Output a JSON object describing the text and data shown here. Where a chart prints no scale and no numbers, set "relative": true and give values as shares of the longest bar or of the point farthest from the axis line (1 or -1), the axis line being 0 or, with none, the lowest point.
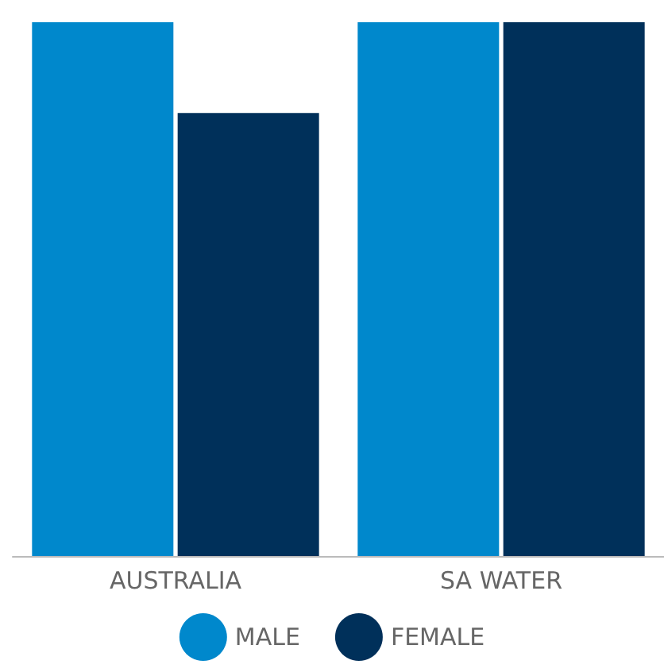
{
  "chart_data": {
    "type": "bar",
    "relative": true,
    "categories": [
      "AUSTRALIA",
      "SA WATER"
    ],
    "series": [
      {
        "name": "MALE",
        "color": "#0088cc",
        "values": [
          1,
          1
        ]
      },
      {
        "name": "FEMALE",
        "color": "#00305a",
        "values": [
          0.83,
          1
        ]
      }
    ],
    "legend": "bottom"
  }
}
